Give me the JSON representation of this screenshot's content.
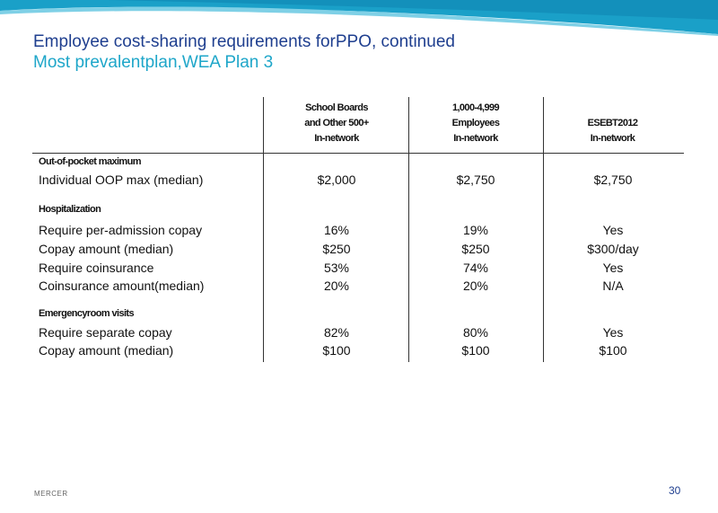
{
  "header": {
    "title": "Employee cost-sharing requirements forPPO, continued",
    "subtitle": "Most prevalentplan,WEA Plan 3"
  },
  "columns": [
    {
      "line1": "School      Boards",
      "line2": "and    Other    500+",
      "line3": "In-network"
    },
    {
      "line1": "1,000-4,999",
      "line2": "Employees",
      "line3": "In-network"
    },
    {
      "line1": "",
      "line2": "ESEBT2012",
      "line3": "In-network"
    }
  ],
  "sections": {
    "oop": {
      "heading": "Out-of-pocket          maximum",
      "rows": [
        {
          "label": "Individual  OOP max (median)",
          "values": [
            "$2,000",
            "$2,750",
            "$2,750"
          ]
        }
      ]
    },
    "hospitalization": {
      "heading": "Hospitalization",
      "rows": [
        {
          "label": "Require per-admission copay",
          "values": [
            "16%",
            "19%",
            "Yes"
          ]
        },
        {
          "label": "Copay amount (median)",
          "values": [
            "$250",
            "$250",
            "$300/day"
          ]
        },
        {
          "label": "Require coinsurance",
          "values": [
            "53%",
            "74%",
            "Yes"
          ]
        },
        {
          "label": "Coinsurance amount(median)",
          "values": [
            "20%",
            "20%",
            "N/A"
          ]
        }
      ]
    },
    "er": {
      "heading": "Emergencyroom              visits",
      "rows": [
        {
          "label": "Require separate copay",
          "values": [
            "82%",
            "80%",
            "Yes"
          ]
        },
        {
          "label": "Copay amount (median)",
          "values": [
            "$100",
            "$100",
            "$100"
          ]
        }
      ]
    }
  },
  "footer": {
    "brand": "MERCER",
    "page_number": "30"
  },
  "colors": {
    "title": "#1f3f8f",
    "subtitle": "#1ea6c9",
    "banner": "#1aa0c8"
  }
}
